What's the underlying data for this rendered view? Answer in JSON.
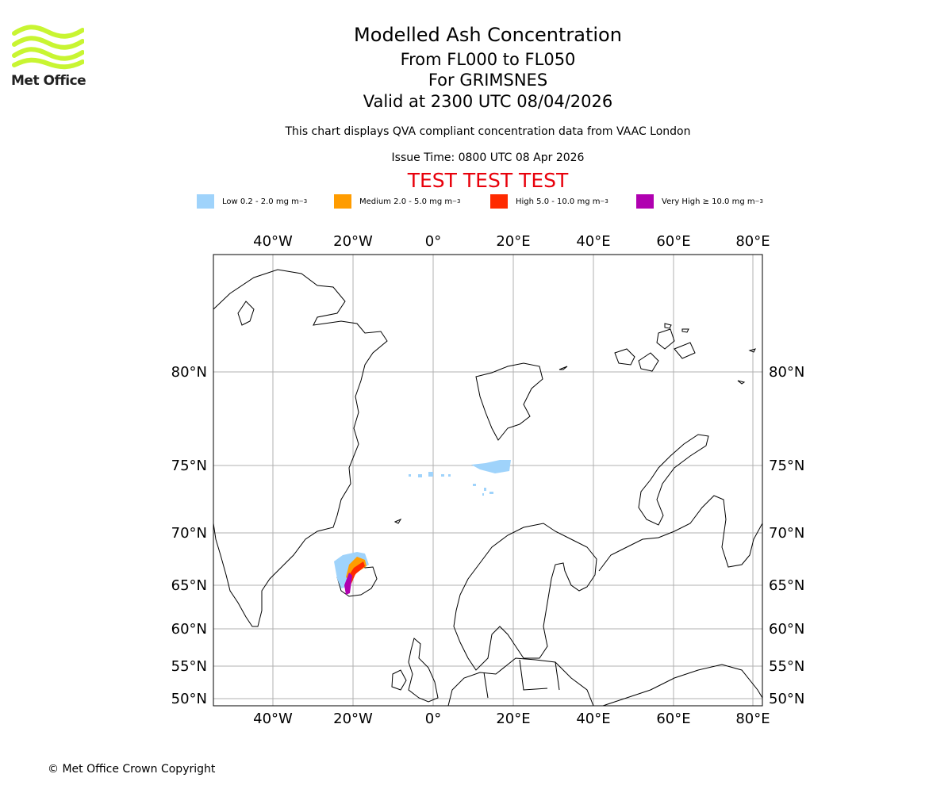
{
  "logo": {
    "text": "Met Office"
  },
  "header": {
    "title": "Modelled Ash Concentration",
    "subtitle_levels": "From FL000 to FL050",
    "subtitle_volcano": "For GRIMSNES",
    "subtitle_valid": "Valid at 2300 UTC 08/04/2026",
    "compliance": "This chart displays QVA compliant concentration data from VAAC London",
    "issue_time": "Issue Time: 0800 UTC 08 Apr 2026",
    "test_banner": "TEST TEST TEST"
  },
  "legend": [
    {
      "label": "Low 0.2 - 2.0 mg m",
      "unit_sup": "−3",
      "color": "#9fd3fb"
    },
    {
      "label": "Medium 2.0 - 5.0 mg m",
      "unit_sup": "−3",
      "color": "#ff9c00"
    },
    {
      "label": "High 5.0 - 10.0 mg m",
      "unit_sup": "−3",
      "color": "#ff2a00"
    },
    {
      "label": "Very High  ≥  10.0 mg m",
      "unit_sup": "−3",
      "color": "#b000b0"
    }
  ],
  "map": {
    "lon_labels": [
      "40°W",
      "20°W",
      "0°",
      "20°E",
      "40°E",
      "60°E",
      "80°E"
    ],
    "lat_labels": [
      "80°N",
      "75°N",
      "70°N",
      "65°N",
      "60°N",
      "55°N",
      "50°N"
    ]
  },
  "footer": {
    "copyright": "© Met Office Crown Copyright"
  }
}
